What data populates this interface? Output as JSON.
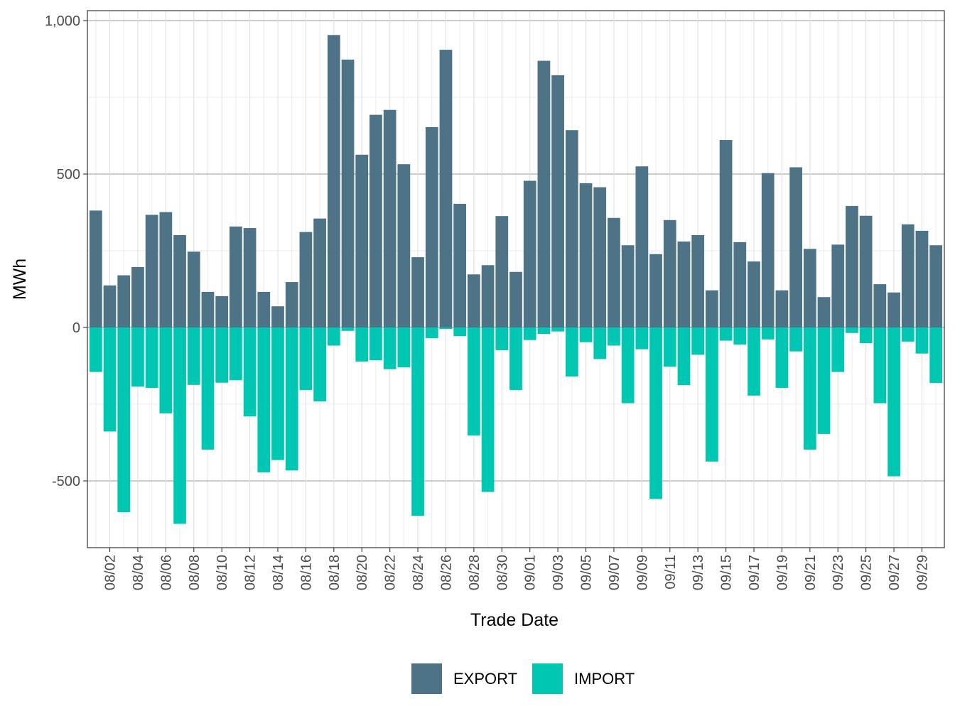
{
  "chart_data": {
    "type": "bar",
    "stacked": "diverging",
    "xlabel": "Trade Date",
    "ylabel": "MWh",
    "ylim": [
      -720,
      1030
    ],
    "yticks": [
      -500,
      0,
      500,
      1000
    ],
    "ytick_labels": [
      "-500",
      "0",
      "500",
      "1,000"
    ],
    "xtick_labels": [
      "08/02",
      "08/04",
      "08/06",
      "08/08",
      "08/10",
      "08/12",
      "08/14",
      "08/16",
      "08/18",
      "08/20",
      "08/22",
      "08/24",
      "08/26",
      "08/28",
      "08/30",
      "09/01",
      "09/03",
      "09/05",
      "09/07",
      "09/09",
      "09/11",
      "09/13",
      "09/15",
      "09/17",
      "09/19",
      "09/21",
      "09/23",
      "09/25",
      "09/27",
      "09/29"
    ],
    "categories": [
      "08/01",
      "08/02",
      "08/03",
      "08/04",
      "08/05",
      "08/06",
      "08/07",
      "08/08",
      "08/09",
      "08/10",
      "08/11",
      "08/12",
      "08/13",
      "08/14",
      "08/15",
      "08/16",
      "08/17",
      "08/18",
      "08/19",
      "08/20",
      "08/21",
      "08/22",
      "08/23",
      "08/24",
      "08/25",
      "08/26",
      "08/27",
      "08/28",
      "08/29",
      "08/30",
      "08/31",
      "09/01",
      "09/02",
      "09/03",
      "09/04",
      "09/05",
      "09/06",
      "09/07",
      "09/08",
      "09/09",
      "09/10",
      "09/11",
      "09/12",
      "09/13",
      "09/14",
      "09/15",
      "09/16",
      "09/17",
      "09/18",
      "09/19",
      "09/20",
      "09/21",
      "09/22",
      "09/23",
      "09/24",
      "09/25",
      "09/26",
      "09/27",
      "09/28",
      "09/29",
      "09/30"
    ],
    "series": [
      {
        "name": "EXPORT",
        "color": "#4F7386",
        "values": [
          381,
          137,
          170,
          197,
          367,
          376,
          301,
          247,
          116,
          102,
          329,
          324,
          116,
          69,
          148,
          311,
          355,
          953,
          873,
          563,
          693,
          709,
          532,
          229,
          653,
          905,
          403,
          173,
          203,
          363,
          181,
          478,
          869,
          822,
          643,
          470,
          457,
          357,
          268,
          525,
          239,
          350,
          280,
          301,
          121,
          611,
          278,
          215,
          503,
          121,
          522,
          256,
          99,
          270,
          396,
          364,
          141,
          114,
          336,
          315,
          268
        ]
      },
      {
        "name": "IMPORT",
        "color": "#00C7B2",
        "values": [
          -145,
          -339,
          -602,
          -193,
          -197,
          -280,
          -640,
          -187,
          -398,
          -180,
          -172,
          -290,
          -472,
          -432,
          -466,
          -204,
          -241,
          -59,
          -11,
          -111,
          -107,
          -136,
          -130,
          -614,
          -35,
          -5,
          -28,
          -352,
          -536,
          -74,
          -204,
          -41,
          -21,
          -13,
          -160,
          -48,
          -103,
          -59,
          -247,
          -71,
          -559,
          -128,
          -188,
          -89,
          -437,
          -43,
          -56,
          -222,
          -39,
          -197,
          -78,
          -398,
          -347,
          -145,
          -18,
          -51,
          -247,
          -485,
          -46,
          -85,
          -181
        ]
      }
    ],
    "legend": {
      "position": "bottom",
      "entries": [
        "EXPORT",
        "IMPORT"
      ]
    }
  }
}
